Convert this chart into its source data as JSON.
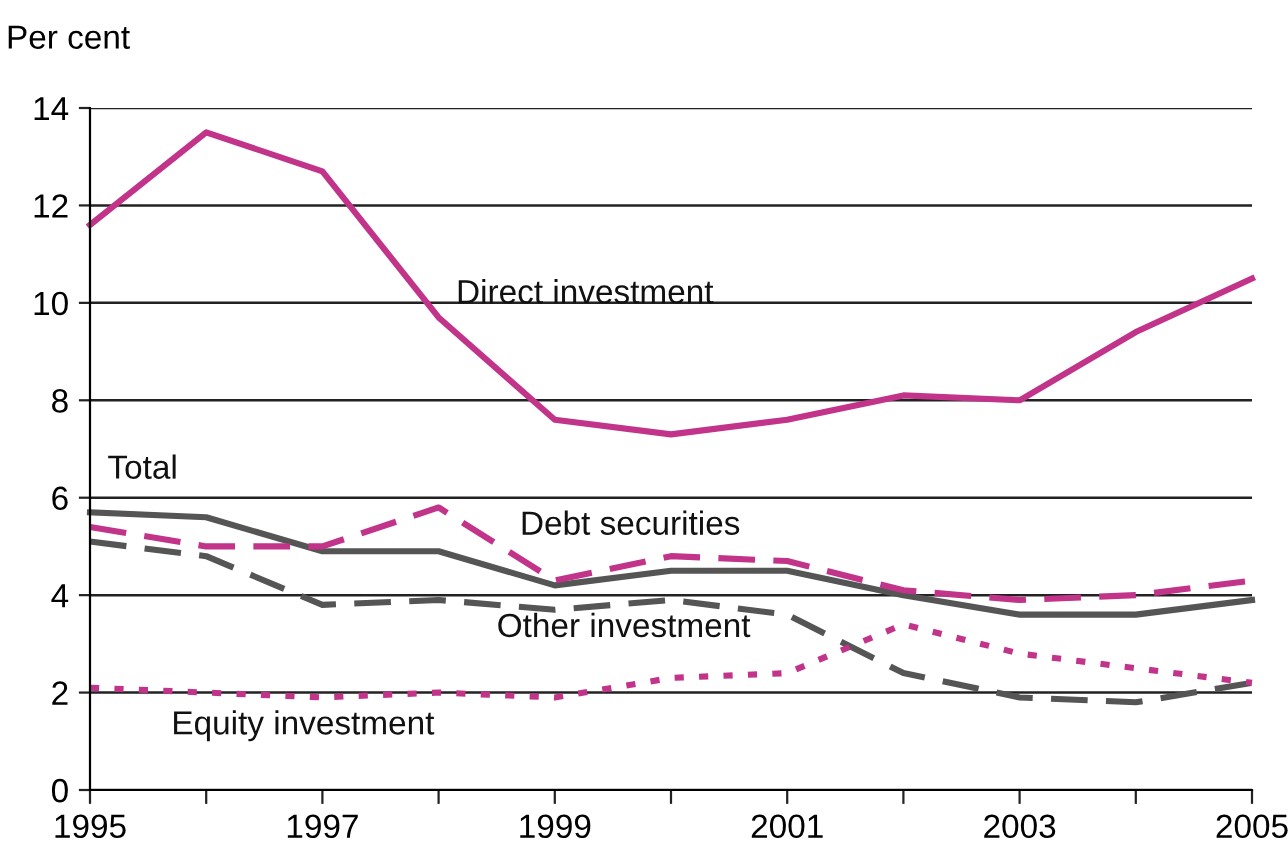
{
  "chart_data": {
    "type": "line",
    "ylabel": "Per cent",
    "x": [
      1995,
      1996,
      1997,
      1998,
      1999,
      2000,
      2001,
      2002,
      2003,
      2004,
      2005
    ],
    "series": [
      {
        "name": "Direct investment",
        "color": "#c2338a",
        "line_style": "solid",
        "values": [
          11.6,
          13.5,
          12.7,
          9.7,
          7.6,
          7.3,
          7.6,
          8.1,
          8.0,
          9.4,
          10.5
        ]
      },
      {
        "name": "Total",
        "color": "#555555",
        "line_style": "solid",
        "values": [
          5.7,
          5.6,
          4.9,
          4.9,
          4.2,
          4.5,
          4.5,
          4.0,
          3.6,
          3.6,
          3.9
        ]
      },
      {
        "name": "Debt securities",
        "color": "#c2338a",
        "line_style": "dashed",
        "values": [
          5.4,
          5.0,
          5.0,
          5.8,
          4.3,
          4.8,
          4.7,
          4.1,
          3.9,
          4.0,
          4.3
        ]
      },
      {
        "name": "Other investment",
        "color": "#555555",
        "line_style": "dashed",
        "values": [
          5.1,
          4.8,
          3.8,
          3.9,
          3.7,
          3.9,
          3.6,
          2.4,
          1.9,
          1.8,
          2.2
        ]
      },
      {
        "name": "Equity investment",
        "color": "#c2338a",
        "line_style": "dotted",
        "values": [
          2.1,
          2.0,
          1.9,
          2.0,
          1.9,
          2.3,
          2.4,
          3.4,
          2.8,
          2.5,
          2.2
        ]
      }
    ],
    "xlim": [
      1995,
      2005
    ],
    "ylim": [
      0,
      14
    ],
    "xticks": [
      1995,
      {
        "value": 1996,
        "label": null
      },
      1997,
      {
        "value": 1998,
        "label": null
      },
      1999,
      {
        "value": 2000,
        "label": null
      },
      2001,
      {
        "value": 2002,
        "label": null
      },
      2003,
      {
        "value": 2004,
        "label": null
      },
      2005
    ],
    "yticks": [
      0,
      2,
      4,
      6,
      8,
      10,
      12,
      14
    ],
    "grid": "y",
    "legend": false,
    "marker": "none"
  }
}
